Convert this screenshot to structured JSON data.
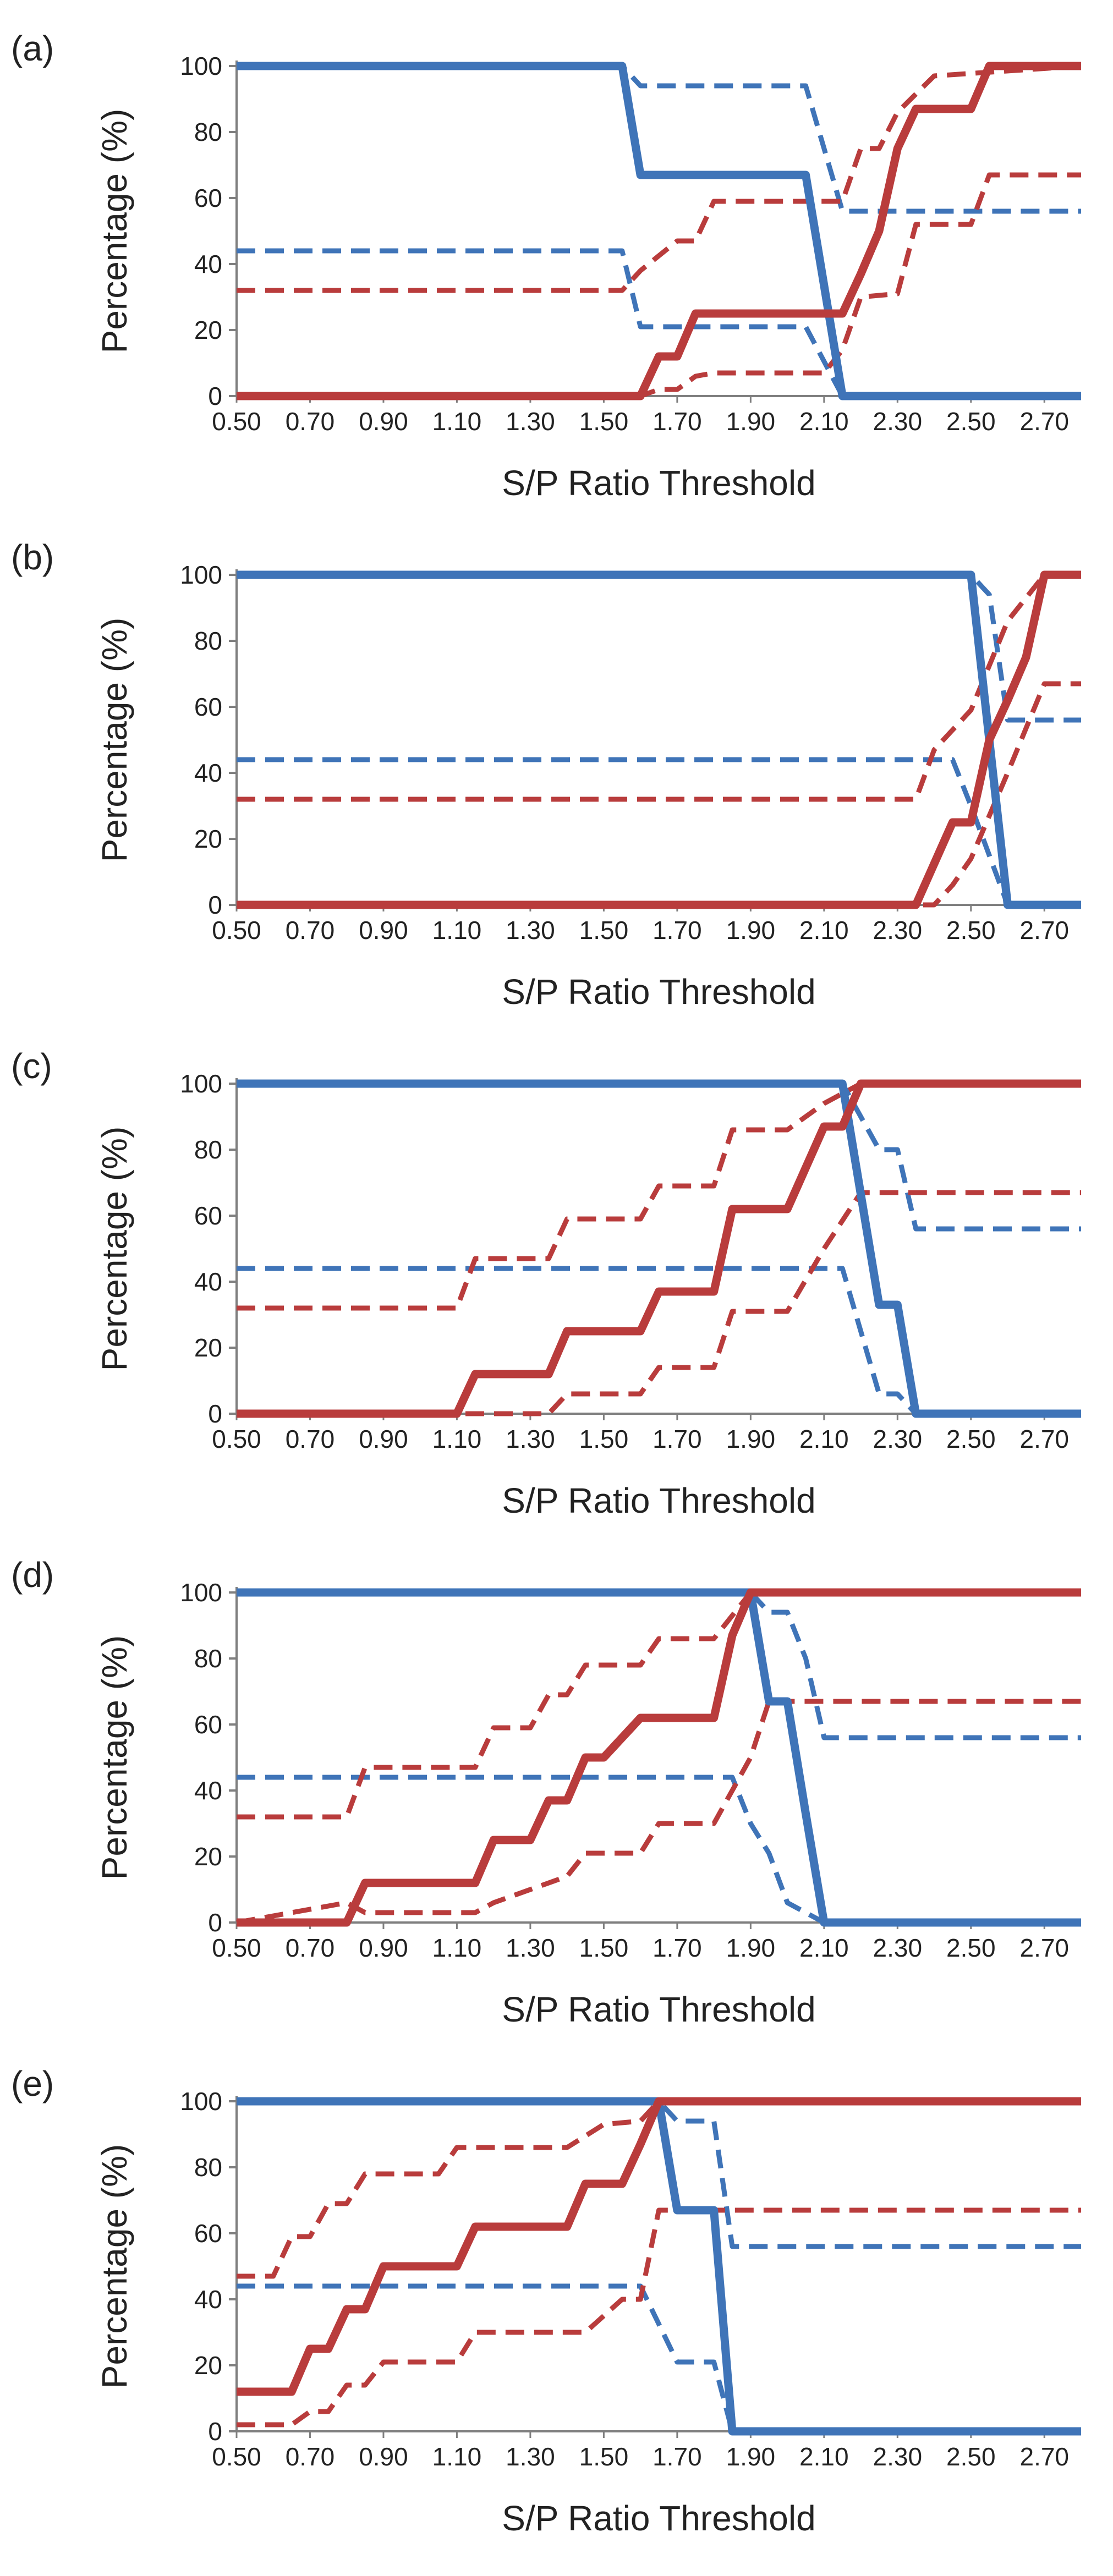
{
  "colors": {
    "blue": "#3f74b8",
    "red": "#b93c3c",
    "axis": "#7f7f7f",
    "text": "#222222"
  },
  "chart_data": [
    {
      "type": "line",
      "panel": "(a)",
      "xlabel": "S/P Ratio Threshold",
      "ylabel": "Percentage (%)",
      "xlim": [
        0.5,
        2.8
      ],
      "ylim": [
        0,
        100
      ],
      "x_ticks": [
        "0.50",
        "0.70",
        "0.90",
        "1.10",
        "1.30",
        "1.50",
        "1.70",
        "1.90",
        "2.10",
        "2.30",
        "2.50",
        "2.70"
      ],
      "y_ticks": [
        0,
        20,
        40,
        60,
        80,
        100
      ],
      "series": [
        {
          "name": "blue-solid",
          "color": "blue",
          "style": "solid",
          "x": [
            0.5,
            1.55,
            1.6,
            2.05,
            2.15,
            2.8
          ],
          "y": [
            100,
            100,
            67,
            67,
            0,
            0
          ]
        },
        {
          "name": "blue-dash-upper",
          "color": "blue",
          "style": "dashed",
          "x": [
            0.5,
            1.55,
            1.6,
            2.05,
            2.15,
            2.8
          ],
          "y": [
            100,
            100,
            94,
            94,
            56,
            56
          ]
        },
        {
          "name": "blue-dash-lower",
          "color": "blue",
          "style": "dashed",
          "x": [
            0.5,
            1.55,
            1.6,
            2.05,
            2.15,
            2.8
          ],
          "y": [
            44,
            44,
            21,
            21,
            0,
            0
          ]
        },
        {
          "name": "red-solid",
          "color": "red",
          "style": "solid",
          "x": [
            0.5,
            1.6,
            1.65,
            1.7,
            1.75,
            1.8,
            1.85,
            2.1,
            2.15,
            2.2,
            2.25,
            2.3,
            2.35,
            2.5,
            2.55,
            2.8
          ],
          "y": [
            0,
            0,
            12,
            12,
            25,
            25,
            25,
            25,
            25,
            37,
            50,
            75,
            87,
            87,
            100,
            100
          ]
        },
        {
          "name": "red-dash-upper",
          "color": "red",
          "style": "dashed",
          "x": [
            0.5,
            1.55,
            1.6,
            1.7,
            1.75,
            1.8,
            2.05,
            2.15,
            2.2,
            2.25,
            2.3,
            2.4,
            2.8
          ],
          "y": [
            32,
            32,
            38,
            47,
            47,
            59,
            59,
            59,
            75,
            75,
            86,
            97,
            100
          ]
        },
        {
          "name": "red-dash-lower",
          "color": "red",
          "style": "dashed",
          "x": [
            0.5,
            1.6,
            1.65,
            1.7,
            1.75,
            1.8,
            2.1,
            2.15,
            2.2,
            2.3,
            2.35,
            2.5,
            2.55,
            2.8
          ],
          "y": [
            0,
            0,
            2,
            2,
            6,
            7,
            7,
            14,
            30,
            31,
            52,
            52,
            67,
            67
          ]
        }
      ]
    },
    {
      "type": "line",
      "panel": "(b)",
      "xlabel": "S/P Ratio Threshold",
      "ylabel": "Percentage (%)",
      "xlim": [
        0.5,
        2.8
      ],
      "ylim": [
        0,
        100
      ],
      "x_ticks": [
        "0.50",
        "0.70",
        "0.90",
        "1.10",
        "1.30",
        "1.50",
        "1.70",
        "1.90",
        "2.10",
        "2.30",
        "2.50",
        "2.70"
      ],
      "y_ticks": [
        0,
        20,
        40,
        60,
        80,
        100
      ],
      "series": [
        {
          "name": "blue-solid",
          "color": "blue",
          "style": "solid",
          "x": [
            0.5,
            2.5,
            2.6,
            2.8
          ],
          "y": [
            100,
            100,
            0,
            0
          ]
        },
        {
          "name": "blue-dash-upper",
          "color": "blue",
          "style": "dashed",
          "x": [
            0.5,
            2.5,
            2.55,
            2.6,
            2.8
          ],
          "y": [
            100,
            100,
            94,
            56,
            56
          ]
        },
        {
          "name": "blue-dash-lower",
          "color": "blue",
          "style": "dashed",
          "x": [
            0.5,
            2.45,
            2.5,
            2.6,
            2.8
          ],
          "y": [
            44,
            44,
            30,
            0,
            0
          ]
        },
        {
          "name": "red-solid",
          "color": "red",
          "style": "solid",
          "x": [
            0.5,
            2.35,
            2.45,
            2.5,
            2.55,
            2.6,
            2.65,
            2.7,
            2.8
          ],
          "y": [
            0,
            0,
            25,
            25,
            50,
            62,
            75,
            100,
            100
          ]
        },
        {
          "name": "red-dash-upper",
          "color": "red",
          "style": "dashed",
          "x": [
            0.5,
            2.35,
            2.4,
            2.5,
            2.6,
            2.7,
            2.8
          ],
          "y": [
            32,
            32,
            47,
            59,
            86,
            100,
            100
          ]
        },
        {
          "name": "red-dash-lower",
          "color": "red",
          "style": "dashed",
          "x": [
            0.5,
            2.4,
            2.45,
            2.5,
            2.6,
            2.7,
            2.8
          ],
          "y": [
            0,
            0,
            6,
            14,
            40,
            67,
            67
          ]
        }
      ]
    },
    {
      "type": "line",
      "panel": "(c)",
      "xlabel": "S/P Ratio Threshold",
      "ylabel": "Percentage (%)",
      "xlim": [
        0.5,
        2.8
      ],
      "ylim": [
        0,
        100
      ],
      "x_ticks": [
        "0.50",
        "0.70",
        "0.90",
        "1.10",
        "1.30",
        "1.50",
        "1.70",
        "1.90",
        "2.10",
        "2.30",
        "2.50",
        "2.70"
      ],
      "y_ticks": [
        0,
        20,
        40,
        60,
        80,
        100
      ],
      "series": [
        {
          "name": "blue-solid",
          "color": "blue",
          "style": "solid",
          "x": [
            0.5,
            2.15,
            2.25,
            2.3,
            2.35,
            2.8
          ],
          "y": [
            100,
            100,
            33,
            33,
            0,
            0
          ]
        },
        {
          "name": "blue-dash-upper",
          "color": "blue",
          "style": "dashed",
          "x": [
            0.5,
            2.15,
            2.25,
            2.3,
            2.35,
            2.8
          ],
          "y": [
            100,
            100,
            80,
            80,
            56,
            56
          ]
        },
        {
          "name": "blue-dash-lower",
          "color": "blue",
          "style": "dashed",
          "x": [
            0.5,
            2.15,
            2.25,
            2.3,
            2.35,
            2.8
          ],
          "y": [
            44,
            44,
            6,
            6,
            0,
            0
          ]
        },
        {
          "name": "red-solid",
          "color": "red",
          "style": "solid",
          "x": [
            0.5,
            1.1,
            1.15,
            1.35,
            1.4,
            1.6,
            1.65,
            1.8,
            1.85,
            2.0,
            2.1,
            2.15,
            2.2,
            2.8
          ],
          "y": [
            0,
            0,
            12,
            12,
            25,
            25,
            37,
            37,
            62,
            62,
            87,
            87,
            100,
            100
          ]
        },
        {
          "name": "red-dash-upper",
          "color": "red",
          "style": "dashed",
          "x": [
            0.5,
            1.1,
            1.15,
            1.35,
            1.4,
            1.6,
            1.65,
            1.8,
            1.85,
            2.0,
            2.1,
            2.2,
            2.8
          ],
          "y": [
            32,
            32,
            47,
            47,
            59,
            59,
            69,
            69,
            86,
            86,
            94,
            100,
            100
          ]
        },
        {
          "name": "red-dash-lower",
          "color": "red",
          "style": "dashed",
          "x": [
            0.5,
            1.35,
            1.4,
            1.6,
            1.65,
            1.8,
            1.85,
            2.0,
            2.1,
            2.2,
            2.8
          ],
          "y": [
            0,
            0,
            6,
            6,
            14,
            14,
            31,
            31,
            50,
            67,
            67
          ]
        }
      ]
    },
    {
      "type": "line",
      "panel": "(d)",
      "xlabel": "S/P Ratio Threshold",
      "ylabel": "Percentage (%)",
      "xlim": [
        0.5,
        2.8
      ],
      "ylim": [
        0,
        100
      ],
      "x_ticks": [
        "0.50",
        "0.70",
        "0.90",
        "1.10",
        "1.30",
        "1.50",
        "1.70",
        "1.90",
        "2.10",
        "2.30",
        "2.50",
        "2.70"
      ],
      "y_ticks": [
        0,
        20,
        40,
        60,
        80,
        100
      ],
      "series": [
        {
          "name": "blue-solid",
          "color": "blue",
          "style": "solid",
          "x": [
            0.5,
            1.9,
            1.95,
            2.0,
            2.05,
            2.1,
            2.8
          ],
          "y": [
            100,
            100,
            67,
            67,
            33,
            0,
            0
          ]
        },
        {
          "name": "blue-dash-upper",
          "color": "blue",
          "style": "dashed",
          "x": [
            0.5,
            1.9,
            1.95,
            2.0,
            2.05,
            2.1,
            2.8
          ],
          "y": [
            100,
            100,
            94,
            94,
            80,
            56,
            56
          ]
        },
        {
          "name": "blue-dash-lower",
          "color": "blue",
          "style": "dashed",
          "x": [
            0.5,
            1.85,
            1.9,
            1.95,
            2.0,
            2.1,
            2.8
          ],
          "y": [
            44,
            44,
            30,
            21,
            6,
            0,
            0
          ]
        },
        {
          "name": "red-solid",
          "color": "red",
          "style": "solid",
          "x": [
            0.5,
            0.8,
            0.85,
            1.15,
            1.2,
            1.3,
            1.35,
            1.4,
            1.45,
            1.5,
            1.6,
            1.65,
            1.8,
            1.85,
            1.9,
            2.8
          ],
          "y": [
            0,
            0,
            12,
            12,
            25,
            25,
            37,
            37,
            50,
            50,
            62,
            62,
            62,
            87,
            100,
            100
          ]
        },
        {
          "name": "red-dash-upper",
          "color": "red",
          "style": "dashed",
          "x": [
            0.5,
            0.8,
            0.85,
            1.15,
            1.2,
            1.3,
            1.35,
            1.4,
            1.45,
            1.6,
            1.65,
            1.8,
            1.9,
            2.8
          ],
          "y": [
            32,
            32,
            47,
            47,
            59,
            59,
            69,
            69,
            78,
            78,
            86,
            86,
            100,
            100
          ]
        },
        {
          "name": "red-dash-lower",
          "color": "red",
          "style": "dashed",
          "x": [
            0.5,
            0.8,
            0.85,
            1.15,
            1.2,
            1.4,
            1.45,
            1.6,
            1.65,
            1.8,
            1.9,
            1.95,
            2.8
          ],
          "y": [
            0,
            6,
            3,
            3,
            6,
            14,
            21,
            21,
            30,
            30,
            50,
            67,
            67
          ]
        }
      ]
    },
    {
      "type": "line",
      "panel": "(e)",
      "xlabel": "S/P Ratio Threshold",
      "ylabel": "Percentage (%)",
      "xlim": [
        0.5,
        2.8
      ],
      "ylim": [
        0,
        100
      ],
      "x_ticks": [
        "0.50",
        "0.70",
        "0.90",
        "1.10",
        "1.30",
        "1.50",
        "1.70",
        "1.90",
        "2.10",
        "2.30",
        "2.50",
        "2.70"
      ],
      "y_ticks": [
        0,
        20,
        40,
        60,
        80,
        100
      ],
      "series": [
        {
          "name": "blue-solid",
          "color": "blue",
          "style": "solid",
          "x": [
            0.5,
            1.65,
            1.7,
            1.8,
            1.85,
            2.8
          ],
          "y": [
            100,
            100,
            67,
            67,
            0,
            0
          ]
        },
        {
          "name": "blue-dash-upper",
          "color": "blue",
          "style": "dashed",
          "x": [
            0.5,
            1.65,
            1.7,
            1.8,
            1.85,
            2.8
          ],
          "y": [
            100,
            100,
            94,
            94,
            56,
            56
          ]
        },
        {
          "name": "blue-dash-lower",
          "color": "blue",
          "style": "dashed",
          "x": [
            0.5,
            1.6,
            1.7,
            1.8,
            1.85,
            2.8
          ],
          "y": [
            44,
            44,
            21,
            21,
            0,
            0
          ]
        },
        {
          "name": "red-solid",
          "color": "red",
          "style": "solid",
          "x": [
            0.5,
            0.65,
            0.7,
            0.75,
            0.8,
            0.85,
            0.9,
            1.1,
            1.15,
            1.4,
            1.45,
            1.55,
            1.6,
            1.65,
            2.8
          ],
          "y": [
            12,
            12,
            25,
            25,
            37,
            37,
            50,
            50,
            62,
            62,
            75,
            75,
            87,
            100,
            100
          ]
        },
        {
          "name": "red-dash-upper",
          "color": "red",
          "style": "dashed",
          "x": [
            0.5,
            0.6,
            0.65,
            0.7,
            0.75,
            0.8,
            0.85,
            0.9,
            1.05,
            1.1,
            1.15,
            1.35,
            1.4,
            1.5,
            1.6,
            1.65,
            2.8
          ],
          "y": [
            47,
            47,
            59,
            59,
            69,
            69,
            78,
            78,
            78,
            86,
            86,
            86,
            86,
            93,
            94,
            100,
            100
          ]
        },
        {
          "name": "red-dash-lower",
          "color": "red",
          "style": "dashed",
          "x": [
            0.5,
            0.65,
            0.7,
            0.75,
            0.8,
            0.85,
            0.9,
            1.05,
            1.1,
            1.15,
            1.4,
            1.45,
            1.55,
            1.6,
            1.65,
            1.7,
            2.8
          ],
          "y": [
            2,
            2,
            6,
            6,
            14,
            14,
            21,
            21,
            21,
            30,
            30,
            30,
            40,
            40,
            67,
            67,
            67
          ]
        }
      ]
    }
  ]
}
